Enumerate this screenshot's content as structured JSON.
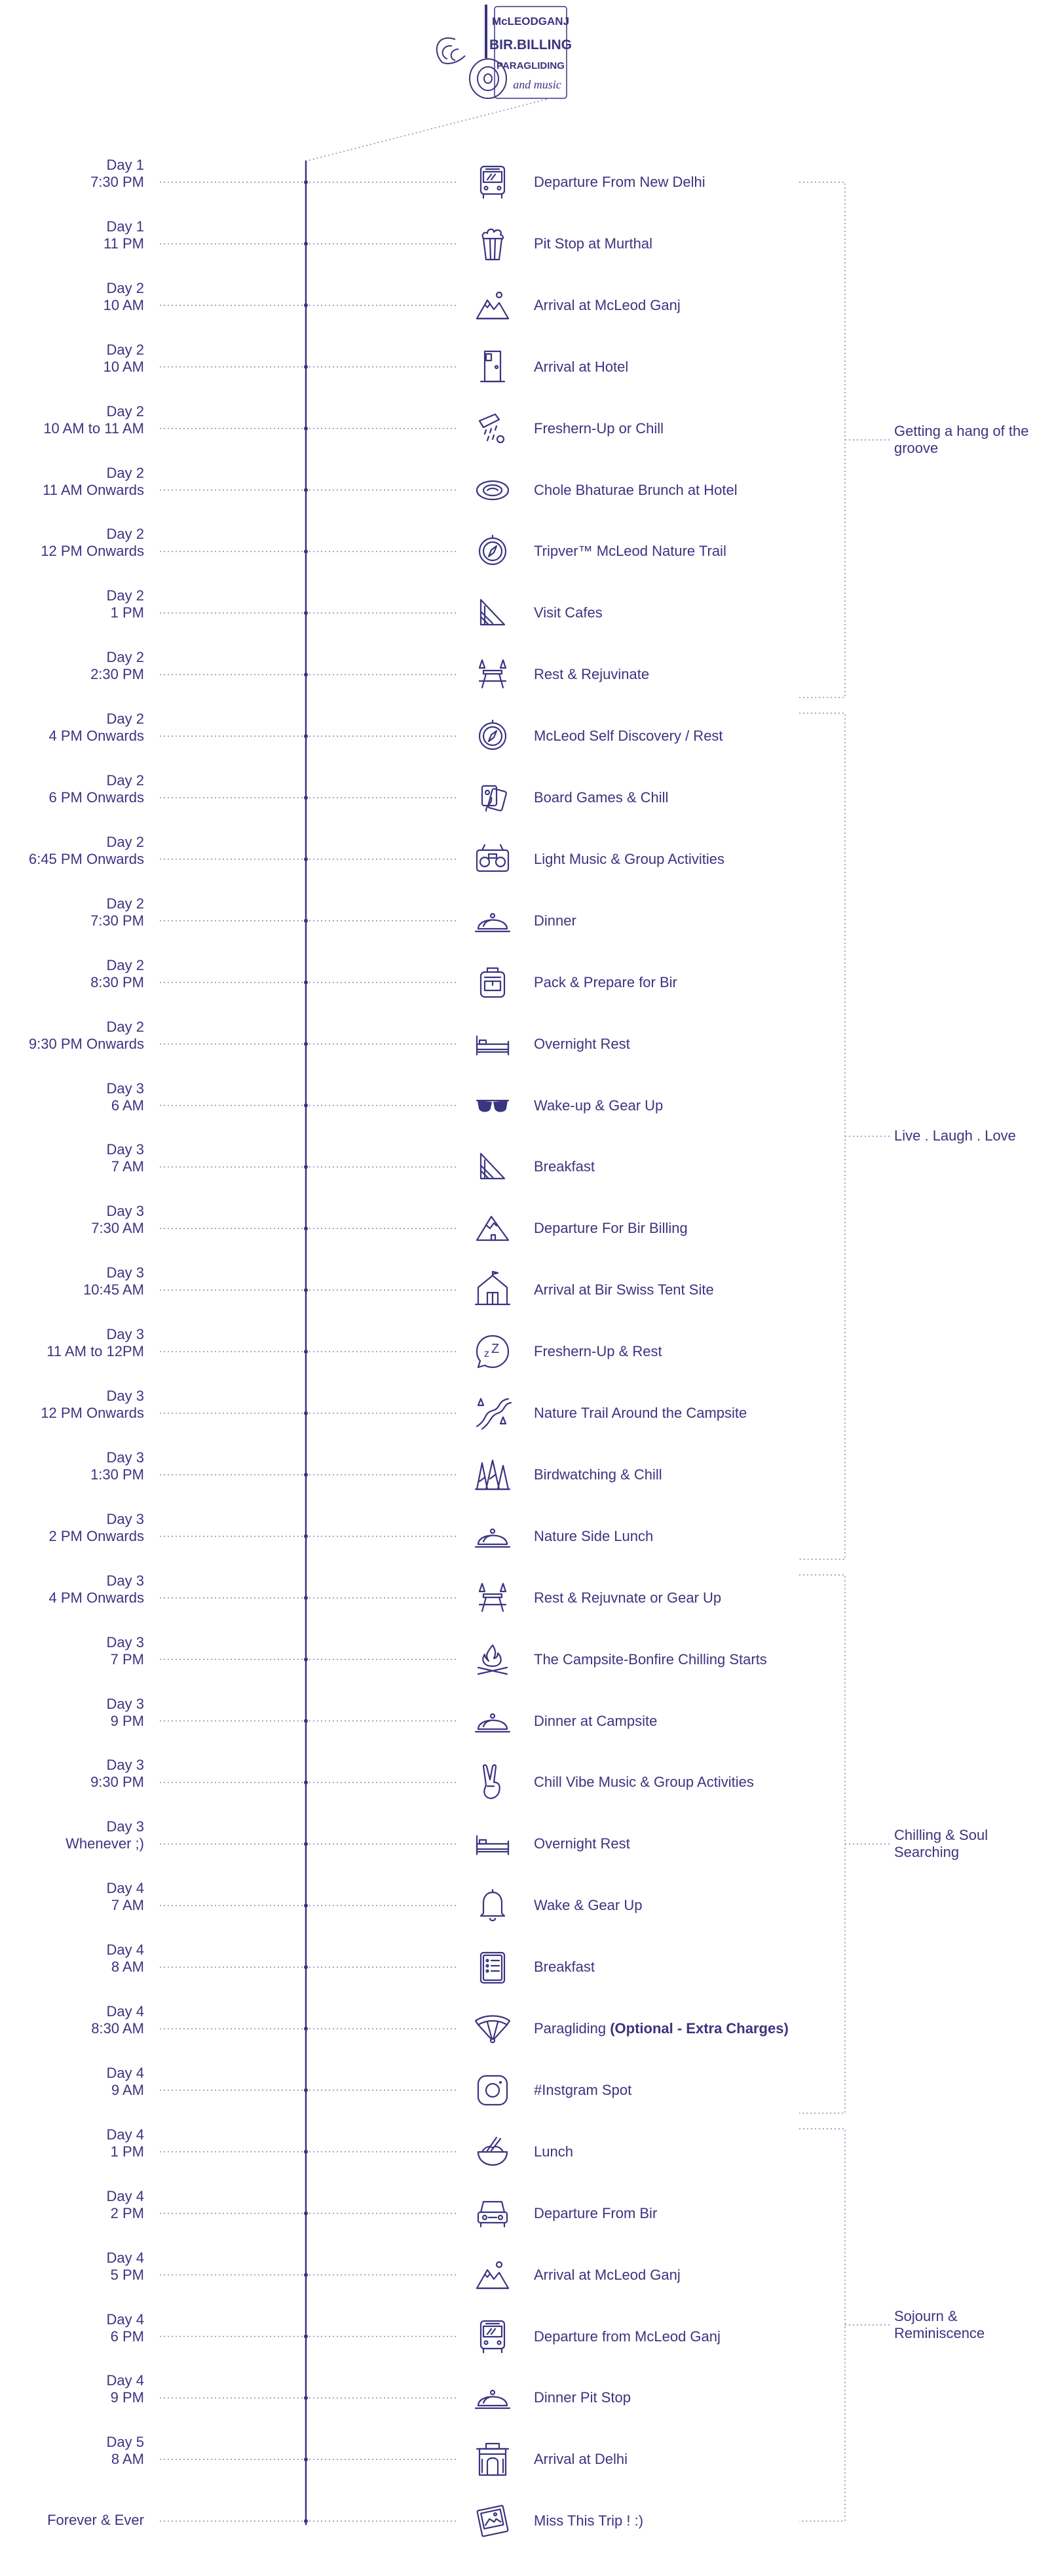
{
  "logo": {
    "line1": "McLEODGANJ",
    "line2": "BIR.BILLING",
    "line3": "PARAGLIDING",
    "line4": "and music"
  },
  "timeline": [
    {
      "day": "Day 1",
      "time": "7:30 PM",
      "label": "Departure From New Delhi",
      "icon": "bus-icon"
    },
    {
      "day": "Day 1",
      "time": "11 PM",
      "label": "Pit Stop at Murthal",
      "icon": "popcorn-icon"
    },
    {
      "day": "Day 2",
      "time": "10 AM",
      "label": "Arrival at McLeod Ganj",
      "icon": "mountains-icon"
    },
    {
      "day": "Day 2",
      "time": "10 AM",
      "label": "Arrival at Hotel",
      "icon": "door-icon"
    },
    {
      "day": "Day 2",
      "time": "10 AM to 11 AM",
      "label": "Freshern-Up or Chill",
      "icon": "shower-icon"
    },
    {
      "day": "Day 2",
      "time": "11 AM Onwards",
      "label": "Chole Bhaturae Brunch at Hotel",
      "icon": "plate-icon"
    },
    {
      "day": "Day 2",
      "time": "12 PM Onwards",
      "label": "Tripver™ McLeod Nature Trail",
      "icon": "compass-icon"
    },
    {
      "day": "Day 2",
      "time": "1 PM",
      "label": "Visit Cafes",
      "icon": "sandwich-icon"
    },
    {
      "day": "Day 2",
      "time": "2:30 PM",
      "label": "Rest & Rejuvinate",
      "icon": "picnic-icon"
    },
    {
      "day": "Day 2",
      "time": "4 PM Onwards",
      "label": "McLeod Self Discovery / Rest",
      "icon": "compass-icon"
    },
    {
      "day": "Day 2",
      "time": "6 PM Onwards",
      "label": "Board Games & Chill",
      "icon": "cards-icon"
    },
    {
      "day": "Day 2",
      "time": "6:45 PM Onwards",
      "label": "Light Music & Group Activities",
      "icon": "radio-icon"
    },
    {
      "day": "Day 2",
      "time": "7:30 PM",
      "label": "Dinner",
      "icon": "cloche-icon"
    },
    {
      "day": "Day 2",
      "time": "8:30 PM",
      "label": "Pack & Prepare for Bir",
      "icon": "backpack-icon"
    },
    {
      "day": "Day 2",
      "time": "9:30 PM Onwards",
      "label": "Overnight Rest",
      "icon": "bed-icon"
    },
    {
      "day": "Day 3",
      "time": "6 AM",
      "label": "Wake-up & Gear Up",
      "icon": "sunglasses-icon"
    },
    {
      "day": "Day 3",
      "time": "7 AM",
      "label": "Breakfast",
      "icon": "sandwich-icon"
    },
    {
      "day": "Day 3",
      "time": "7:30 AM",
      "label": "Departure For Bir Billing",
      "icon": "mountain-icon"
    },
    {
      "day": "Day 3",
      "time": "10:45 AM",
      "label": "Arrival at Bir Swiss Tent Site",
      "icon": "tent-icon"
    },
    {
      "day": "Day 3",
      "time": "11 AM to 12PM",
      "label": "Freshern-Up & Rest",
      "icon": "sleep-bubble-icon"
    },
    {
      "day": "Day 3",
      "time": "12 PM Onwards",
      "label": "Nature Trail Around the Campsite",
      "icon": "trail-icon"
    },
    {
      "day": "Day 3",
      "time": "1:30 PM",
      "label": "Birdwatching & Chill",
      "icon": "forest-icon"
    },
    {
      "day": "Day 3",
      "time": "2 PM Onwards",
      "label": "Nature Side Lunch",
      "icon": "cloche-icon"
    },
    {
      "day": "Day 3",
      "time": "4 PM Onwards",
      "label": "Rest & Rejuvnate or Gear Up",
      "icon": "picnic-icon"
    },
    {
      "day": "Day 3",
      "time": "7 PM",
      "label": "The Campsite-Bonfire Chilling Starts",
      "icon": "bonfire-icon"
    },
    {
      "day": "Day 3",
      "time": "9 PM",
      "label": "Dinner at Campsite",
      "icon": "cloche-icon"
    },
    {
      "day": "Day 3",
      "time": "9:30 PM",
      "label": "Chill Vibe Music & Group Activities",
      "icon": "peace-hand-icon"
    },
    {
      "day": "Day 3",
      "time": "Whenever ;)",
      "label": "Overnight Rest",
      "icon": "bed-icon"
    },
    {
      "day": "Day 4",
      "time": "7 AM",
      "label": "Wake & Gear Up",
      "icon": "bell-icon"
    },
    {
      "day": "Day 4",
      "time": "8 AM",
      "label": "Breakfast",
      "icon": "menu-icon"
    },
    {
      "day": "Day 4",
      "time": "8:30 AM",
      "label": "Paragliding ",
      "label_bold": "(Optional - Extra Charges)",
      "icon": "paraglider-icon"
    },
    {
      "day": "Day 4",
      "time": "9 AM",
      "label": "#Instgram Spot",
      "icon": "instagram-icon"
    },
    {
      "day": "Day 4",
      "time": "1 PM",
      "label": "Lunch",
      "icon": "bowl-icon"
    },
    {
      "day": "Day 4",
      "time": "2 PM",
      "label": "Departure From Bir",
      "icon": "car-icon"
    },
    {
      "day": "Day 4",
      "time": "5 PM",
      "label": "Arrival at McLeod Ganj",
      "icon": "mountains-icon"
    },
    {
      "day": "Day 4",
      "time": "6 PM",
      "label": "Departure from McLeod Ganj",
      "icon": "bus-icon"
    },
    {
      "day": "Day 4",
      "time": "9 PM",
      "label": "Dinner Pit Stop",
      "icon": "cloche-icon"
    },
    {
      "day": "Day 5",
      "time": "8 AM",
      "label": "Arrival at Delhi",
      "icon": "india-gate-icon"
    },
    {
      "day": "",
      "time": "Forever & Ever",
      "label": "Miss This Trip ! :)",
      "icon": "photo-icon"
    }
  ],
  "groups": [
    {
      "label": "Getting a hang of the groove",
      "from": 0,
      "to": 8
    },
    {
      "label": "Live . Laugh . Love",
      "from": 9,
      "to": 22
    },
    {
      "label": "Chilling & Soul Searching",
      "from": 23,
      "to": 31
    },
    {
      "label": "Sojourn & Reminiscence",
      "from": 32,
      "to": 38
    }
  ],
  "colors": {
    "ink": "#3b3480",
    "dots": "#8c87b8"
  }
}
